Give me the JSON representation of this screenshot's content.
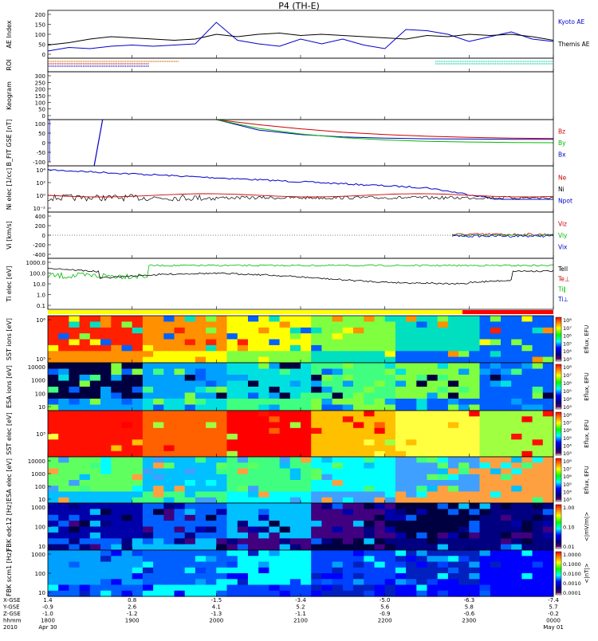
{
  "title": "P4 (TH-E)",
  "colors": {
    "kyoto": "#0000cc",
    "themis": "#000000",
    "red": "#cc0000",
    "green": "#00bb00",
    "blue": "#0000cc",
    "black": "#000000"
  },
  "footer": {
    "row_labels": [
      "X-GSE",
      "Y-GSE",
      "Z-GSE",
      "hhmm",
      "2010"
    ],
    "ticks": [
      {
        "vals": [
          "1.4",
          "-0.9",
          "-1.0",
          "1800",
          "Apr 30"
        ]
      },
      {
        "vals": [
          "0.8",
          "2.6",
          "-1.2",
          "1900",
          ""
        ]
      },
      {
        "vals": [
          "-1.5",
          "4.1",
          "-1.3",
          "2000",
          ""
        ]
      },
      {
        "vals": [
          "-3.4",
          "5.2",
          "-1.1",
          "2100",
          ""
        ]
      },
      {
        "vals": [
          "-5.0",
          "5.6",
          "-0.9",
          "2200",
          ""
        ]
      },
      {
        "vals": [
          "-6.3",
          "5.8",
          "-0.6",
          "2300",
          ""
        ]
      },
      {
        "vals": [
          "-7.4",
          "5.7",
          "-0.2",
          "0000",
          "May 01"
        ]
      }
    ]
  },
  "chart_data": [
    {
      "type": "line",
      "panel": "ae",
      "ylabel": "AE Index",
      "ytick_labels": [
        "200",
        "150",
        "100",
        "50",
        "0"
      ],
      "ylim": [
        0,
        200
      ],
      "legend": [
        "Kyoto AE",
        "Themis AE"
      ],
      "x_hours": [
        18.0,
        18.25,
        18.5,
        18.75,
        19.0,
        19.25,
        19.5,
        19.75,
        20.0,
        20.25,
        20.5,
        20.75,
        21.0,
        21.25,
        21.5,
        21.75,
        22.0,
        22.25,
        22.5,
        22.75,
        23.0,
        23.25,
        23.5,
        23.75,
        24.0
      ],
      "series": [
        {
          "name": "Kyoto AE",
          "values": [
            30,
            45,
            40,
            50,
            55,
            50,
            55,
            60,
            150,
            75,
            60,
            50,
            80,
            60,
            80,
            55,
            40,
            120,
            115,
            100,
            70,
            90,
            110,
            80,
            70
          ]
        },
        {
          "name": "Themis AE",
          "values": [
            55,
            65,
            80,
            90,
            85,
            80,
            75,
            80,
            100,
            90,
            100,
            105,
            95,
            100,
            95,
            90,
            85,
            80,
            95,
            90,
            100,
            95,
            100,
            90,
            75
          ]
        }
      ]
    },
    {
      "type": "line",
      "panel": "roi",
      "ylabel": "ROI",
      "segments": [
        {
          "from": 18.0,
          "to": 19.55,
          "color": "#cc6600"
        },
        {
          "from": 18.0,
          "to": 19.2,
          "color": "#cc0000"
        },
        {
          "from": 18.0,
          "to": 19.2,
          "color": "#0000cc"
        },
        {
          "from": 22.6,
          "to": 24.0,
          "color": "#00cccc"
        },
        {
          "from": 22.6,
          "to": 24.0,
          "color": "#00cc66"
        }
      ]
    },
    {
      "type": "line",
      "panel": "kp",
      "ylabel": "Keogram",
      "ytick_labels": [
        "300",
        "250",
        "200",
        "150",
        "100",
        "50",
        "0"
      ]
    },
    {
      "type": "line",
      "panel": "bfield",
      "ylabel": "B_FIT GSE [nT]",
      "ytick_labels": [
        "100",
        "50",
        "0",
        "-50",
        "-100"
      ],
      "ylim": [
        -100,
        100
      ],
      "legend": [
        "Bz",
        "By",
        "Bx"
      ],
      "x_hours": [
        20.0,
        20.5,
        21.0,
        21.5,
        22.0,
        22.5,
        23.0,
        23.5,
        24.0
      ],
      "series": [
        {
          "name": "Bz",
          "values": [
            100,
            78,
            60,
            45,
            35,
            28,
            23,
            20,
            18
          ]
        },
        {
          "name": "By",
          "values": [
            100,
            62,
            38,
            22,
            12,
            6,
            3,
            1,
            0
          ]
        },
        {
          "name": "Bx",
          "values": [
            100,
            55,
            35,
            25,
            20,
            17,
            16,
            15,
            15
          ]
        }
      ]
    },
    {
      "type": "line",
      "panel": "density",
      "ylabel": "Ni elec [1/cc]",
      "ytick_labels": [
        "10⁴",
        "10²",
        "10⁰",
        "10⁻²"
      ],
      "legend": [
        "Ne",
        "Ni",
        "Npot"
      ]
    },
    {
      "type": "line",
      "panel": "velocity",
      "ylabel": "Vi [km/s]",
      "ytick_labels": [
        "400",
        "200",
        "0",
        "-200",
        "-400"
      ],
      "ylim": [
        -500,
        500
      ],
      "legend": [
        "Viz",
        "Viy",
        "Vix"
      ]
    },
    {
      "type": "line",
      "panel": "temperature",
      "ylabel": "Ti elec [eV]",
      "ytick_labels": [
        "1000.0",
        "100.0",
        "10.0",
        "1.0",
        "0.1"
      ],
      "legend": [
        "Tell",
        "Te⊥",
        "Ti∥",
        "Ti⊥"
      ]
    },
    {
      "type": "heatmap",
      "panel": "sst_ion",
      "ylabel": "SST ions [eV]",
      "ytick_labels": [
        "10⁶",
        "10⁵"
      ],
      "colorbar_ticks": [
        "10⁸",
        "10⁷",
        "10⁶",
        "10⁵",
        "10⁴",
        "10³"
      ],
      "colorbar_label": "Eflux, EFU"
    },
    {
      "type": "heatmap",
      "panel": "esa_ion",
      "ylabel": "ESA ions [eV]",
      "ytick_labels": [
        "10000",
        "1000",
        "100",
        "10"
      ],
      "colorbar_ticks": [
        "10⁸",
        "10⁷",
        "10⁶",
        "10⁵",
        "10⁴",
        "10³"
      ],
      "colorbar_label": "Eflux, EFU"
    },
    {
      "type": "heatmap",
      "panel": "sst_elec",
      "ylabel": "SST elec [eV]",
      "ytick_labels": [
        "10⁵"
      ],
      "colorbar_ticks": [
        "10⁸",
        "10⁷",
        "10⁶",
        "10⁵",
        "10⁴",
        "10³"
      ],
      "colorbar_label": "Eflux, EFU"
    },
    {
      "type": "heatmap",
      "panel": "esa_elec",
      "ylabel": "ESA elec [eV]",
      "ytick_labels": [
        "10000",
        "1000",
        "100",
        "10"
      ],
      "colorbar_ticks": [
        "10⁸",
        "10⁷",
        "10⁶",
        "10⁵",
        "10⁴",
        "10³"
      ],
      "colorbar_label": "Eflux, EFU"
    },
    {
      "type": "heatmap",
      "panel": "fbk_e",
      "ylabel": "FBK edc12 [Hz]",
      "ytick_labels": [
        "1000",
        "100",
        "10"
      ],
      "colorbar_ticks": [
        "1.00",
        "0.10",
        "0.01"
      ],
      "colorbar_label": "<|mV/m|>"
    },
    {
      "type": "heatmap",
      "panel": "fbk_b",
      "ylabel": "FBK scm1 [Hz]",
      "ytick_labels": [
        "1000",
        "100",
        "10"
      ],
      "colorbar_ticks": [
        "1.0000",
        "0.1000",
        "0.0100",
        "0.0010",
        "0.0001"
      ],
      "colorbar_label": "<|nT|>"
    }
  ]
}
